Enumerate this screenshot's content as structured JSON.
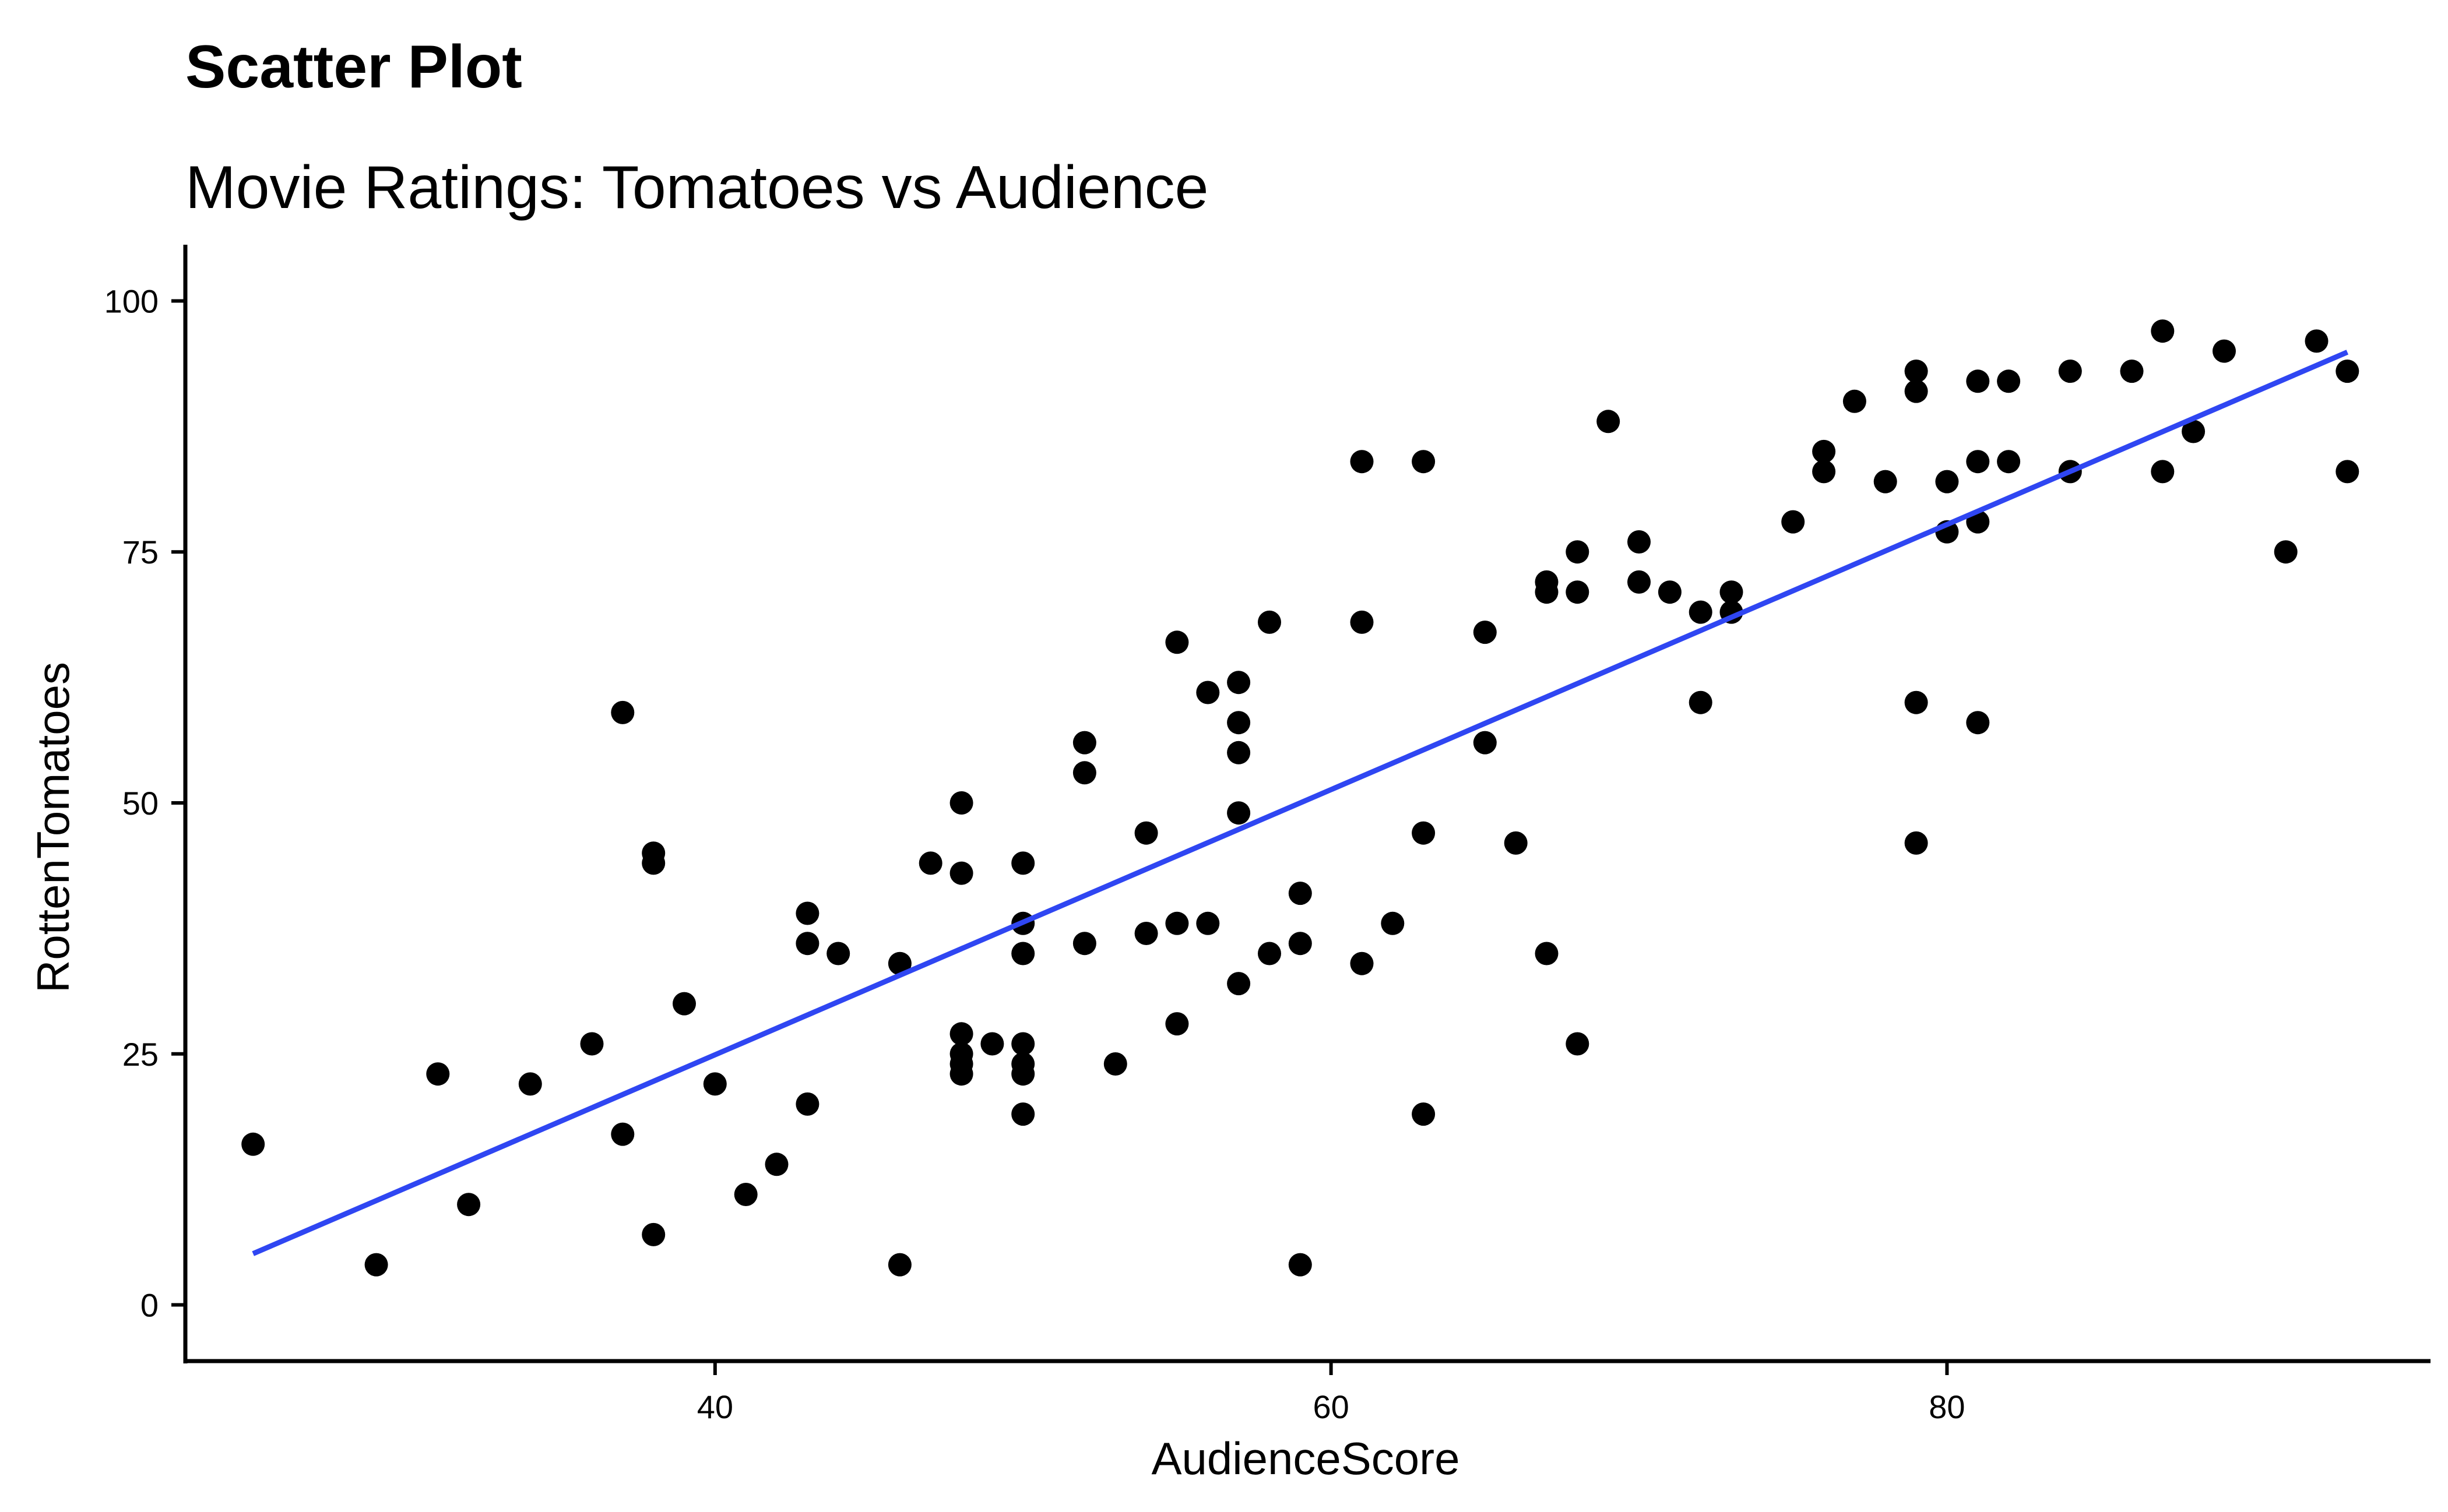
{
  "chart_data": {
    "type": "scatter",
    "title": "Scatter Plot",
    "subtitle": "Movie Ratings: Tomatoes vs Audience",
    "xlabel": "AudienceScore",
    "ylabel": "RottenTomatoes",
    "xlim": [
      22.8,
      95.7
    ],
    "ylim": [
      -5.6,
      105.6
    ],
    "x_ticks": [
      40,
      60,
      80
    ],
    "y_ticks": [
      0,
      25,
      50,
      75,
      100
    ],
    "x_tick_labels": [
      "40",
      "60",
      "80"
    ],
    "y_tick_labels": [
      "0",
      "25",
      "50",
      "75",
      "100"
    ],
    "grid": false,
    "legend": "none",
    "colors": {
      "points": "#000000",
      "trend": "#2f46f2"
    },
    "trend_line": {
      "x": [
        25,
        93
      ],
      "y": [
        5.1,
        94.9
      ]
    },
    "points": [
      [
        25,
        16
      ],
      [
        29,
        4
      ],
      [
        31,
        23
      ],
      [
        32,
        10
      ],
      [
        34,
        22
      ],
      [
        36,
        26
      ],
      [
        37,
        59
      ],
      [
        37,
        17
      ],
      [
        38,
        45
      ],
      [
        38,
        44
      ],
      [
        38,
        7
      ],
      [
        39,
        30
      ],
      [
        40,
        22
      ],
      [
        41,
        11
      ],
      [
        42,
        14
      ],
      [
        43,
        39
      ],
      [
        43,
        36
      ],
      [
        43,
        20
      ],
      [
        44,
        35
      ],
      [
        46,
        34
      ],
      [
        46,
        4
      ],
      [
        47,
        44
      ],
      [
        48,
        50
      ],
      [
        48,
        43
      ],
      [
        48,
        27
      ],
      [
        48,
        25
      ],
      [
        48,
        24
      ],
      [
        48,
        23
      ],
      [
        49,
        26
      ],
      [
        50,
        44
      ],
      [
        50,
        38
      ],
      [
        50,
        35
      ],
      [
        50,
        26
      ],
      [
        50,
        24
      ],
      [
        50,
        23
      ],
      [
        50,
        19
      ],
      [
        52,
        56
      ],
      [
        52,
        53
      ],
      [
        52,
        36
      ],
      [
        53,
        24
      ],
      [
        54,
        47
      ],
      [
        54,
        37
      ],
      [
        55,
        66
      ],
      [
        55,
        38
      ],
      [
        55,
        28
      ],
      [
        56,
        61
      ],
      [
        56,
        38
      ],
      [
        57,
        62
      ],
      [
        57,
        58
      ],
      [
        57,
        55
      ],
      [
        57,
        49
      ],
      [
        57,
        32
      ],
      [
        58,
        68
      ],
      [
        58,
        35
      ],
      [
        59,
        41
      ],
      [
        59,
        36
      ],
      [
        59,
        4
      ],
      [
        61,
        84
      ],
      [
        61,
        68
      ],
      [
        61,
        34
      ],
      [
        62,
        38
      ],
      [
        63,
        84
      ],
      [
        63,
        47
      ],
      [
        63,
        19
      ],
      [
        65,
        67
      ],
      [
        65,
        56
      ],
      [
        66,
        46
      ],
      [
        67,
        72
      ],
      [
        67,
        71
      ],
      [
        67,
        35
      ],
      [
        68,
        75
      ],
      [
        68,
        71
      ],
      [
        68,
        26
      ],
      [
        69,
        88
      ],
      [
        70,
        76
      ],
      [
        70,
        72
      ],
      [
        71,
        71
      ],
      [
        72,
        69
      ],
      [
        72,
        60
      ],
      [
        73,
        71
      ],
      [
        73,
        69
      ],
      [
        75,
        78
      ],
      [
        76,
        85
      ],
      [
        76,
        83
      ],
      [
        77,
        90
      ],
      [
        78,
        82
      ],
      [
        79,
        93
      ],
      [
        79,
        91
      ],
      [
        79,
        60
      ],
      [
        79,
        46
      ],
      [
        80,
        82
      ],
      [
        80,
        77
      ],
      [
        81,
        92
      ],
      [
        81,
        84
      ],
      [
        81,
        78
      ],
      [
        81,
        58
      ],
      [
        82,
        92
      ],
      [
        82,
        84
      ],
      [
        84,
        93
      ],
      [
        84,
        83
      ],
      [
        86,
        93
      ],
      [
        87,
        97
      ],
      [
        87,
        83
      ],
      [
        88,
        87
      ],
      [
        89,
        95
      ],
      [
        91,
        75
      ],
      [
        92,
        96
      ],
      [
        93,
        93
      ],
      [
        93,
        83
      ]
    ]
  }
}
